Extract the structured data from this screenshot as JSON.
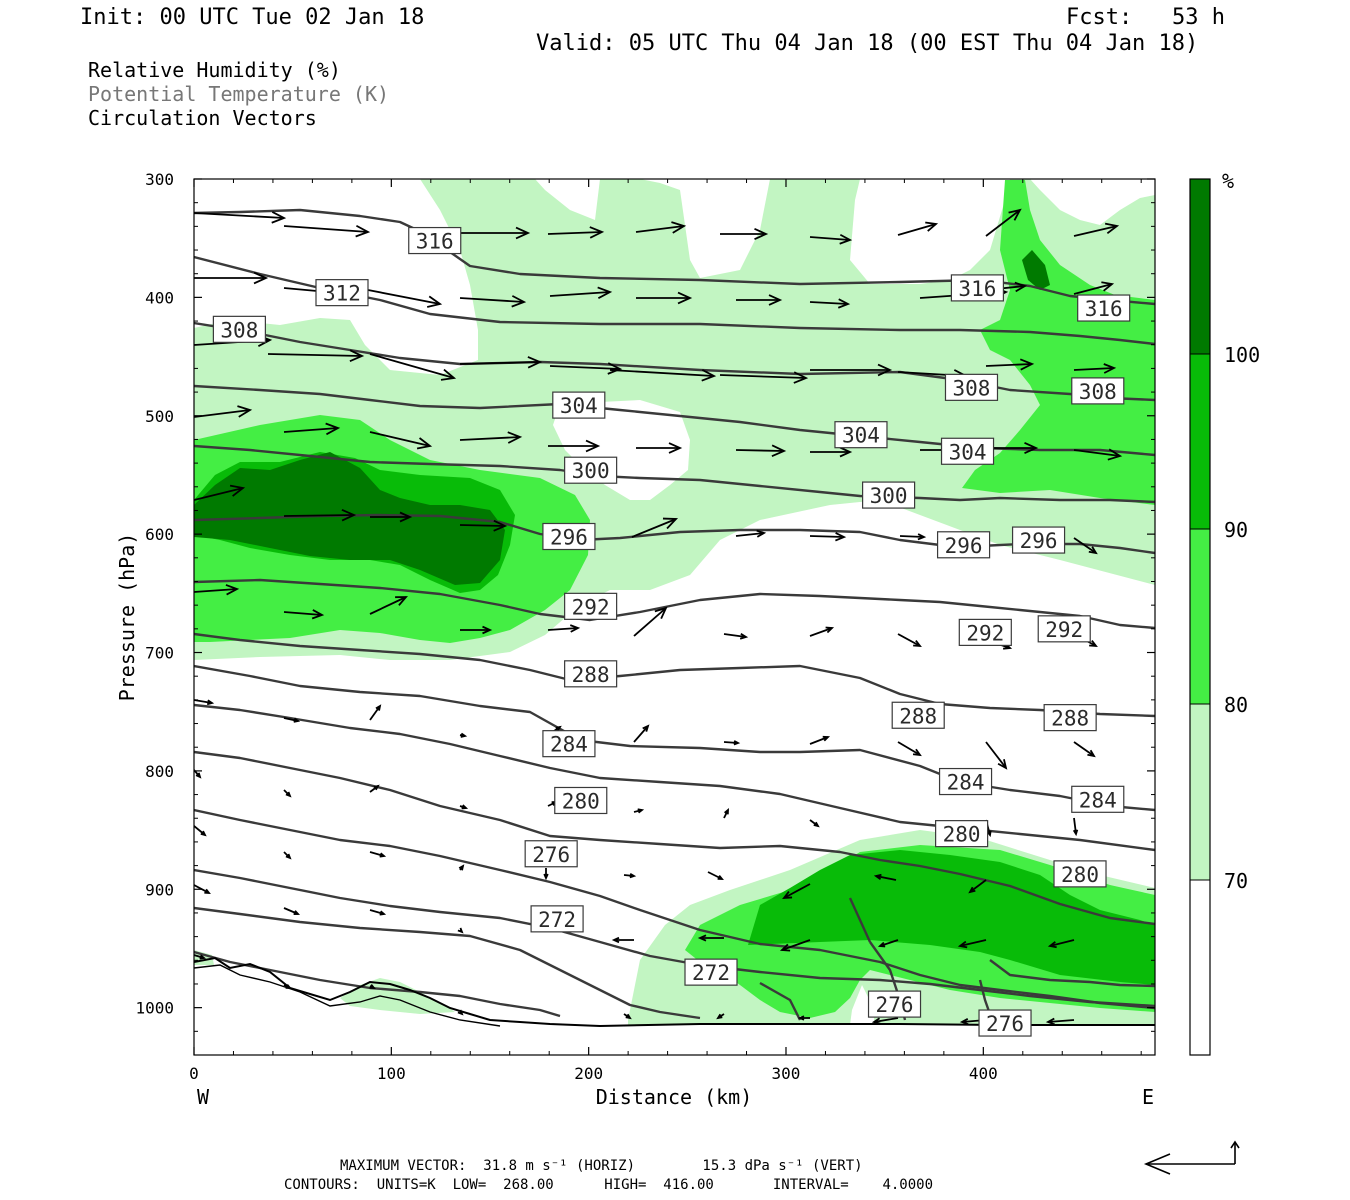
{
  "header": {
    "init": "Init: 00 UTC Tue 02 Jan 18",
    "fcst": "Fcst:   53 h",
    "valid": "Valid: 05 UTC Thu 04 Jan 18 (00 EST Thu 04 Jan 18)"
  },
  "legend": {
    "rh": "Relative Humidity (%)",
    "theta": "Potential Temperature (K)",
    "vectors": "Circulation Vectors"
  },
  "footer": {
    "max_vector": "MAXIMUM VECTOR:  31.8 m s⁻¹ (HORIZ)        15.3 dPa s⁻¹ (VERT)",
    "contours": "CONTOURS:  UNITS=K  LOW=  268.00      HIGH=  416.00       INTERVAL=    4.0000"
  },
  "colors": {
    "rh70": "#c2f5c2",
    "rh80": "#44ee44",
    "rh90": "#08bb08",
    "rh100": "#007a00",
    "contour": "#3a3a3a",
    "terrain": "#000000"
  },
  "chart_data": {
    "type": "cross-section",
    "xlabel": "Distance (km)",
    "ylabel": "Pressure (hPa)",
    "xlim": [
      0,
      487
    ],
    "ylim": [
      1040,
      300
    ],
    "x_ticks": [
      "0",
      "100",
      "200",
      "300",
      "400"
    ],
    "y_ticks": [
      "300",
      "400",
      "500",
      "600",
      "700",
      "800",
      "900",
      "1000"
    ],
    "left_end_label": "W",
    "right_end_label": "E",
    "colorbar": {
      "unit": "%",
      "levels": [
        "70",
        "80",
        "90",
        "100"
      ]
    },
    "contour_labels": [
      {
        "text": "316",
        "x": 122,
        "p": 352
      },
      {
        "text": "312",
        "x": 75,
        "p": 396
      },
      {
        "text": "308",
        "x": 23,
        "p": 427
      },
      {
        "text": "304",
        "x": 195,
        "p": 491
      },
      {
        "text": "300",
        "x": 201,
        "p": 546
      },
      {
        "text": "296",
        "x": 190,
        "p": 602
      },
      {
        "text": "292",
        "x": 201,
        "p": 661
      },
      {
        "text": "288",
        "x": 201,
        "p": 718
      },
      {
        "text": "284",
        "x": 190,
        "p": 777
      },
      {
        "text": "280",
        "x": 196,
        "p": 825
      },
      {
        "text": "276",
        "x": 181,
        "p": 870
      },
      {
        "text": "272",
        "x": 184,
        "p": 925
      },
      {
        "text": "272",
        "x": 262,
        "p": 970
      },
      {
        "text": "276",
        "x": 355,
        "p": 997
      },
      {
        "text": "276",
        "x": 411,
        "p": 1013
      },
      {
        "text": "280",
        "x": 389,
        "p": 853
      },
      {
        "text": "280",
        "x": 449,
        "p": 887
      },
      {
        "text": "284",
        "x": 391,
        "p": 809
      },
      {
        "text": "284",
        "x": 458,
        "p": 824
      },
      {
        "text": "288",
        "x": 367,
        "p": 753
      },
      {
        "text": "288",
        "x": 444,
        "p": 755
      },
      {
        "text": "292",
        "x": 401,
        "p": 683
      },
      {
        "text": "292",
        "x": 441,
        "p": 680
      },
      {
        "text": "296",
        "x": 390,
        "p": 609
      },
      {
        "text": "296",
        "x": 428,
        "p": 605
      },
      {
        "text": "300",
        "x": 352,
        "p": 567
      },
      {
        "text": "304",
        "x": 338,
        "p": 516
      },
      {
        "text": "304",
        "x": 392,
        "p": 530
      },
      {
        "text": "308",
        "x": 394,
        "p": 476
      },
      {
        "text": "308",
        "x": 458,
        "p": 479
      },
      {
        "text": "316",
        "x": 397,
        "p": 392
      },
      {
        "text": "316",
        "x": 461,
        "p": 409
      }
    ]
  }
}
